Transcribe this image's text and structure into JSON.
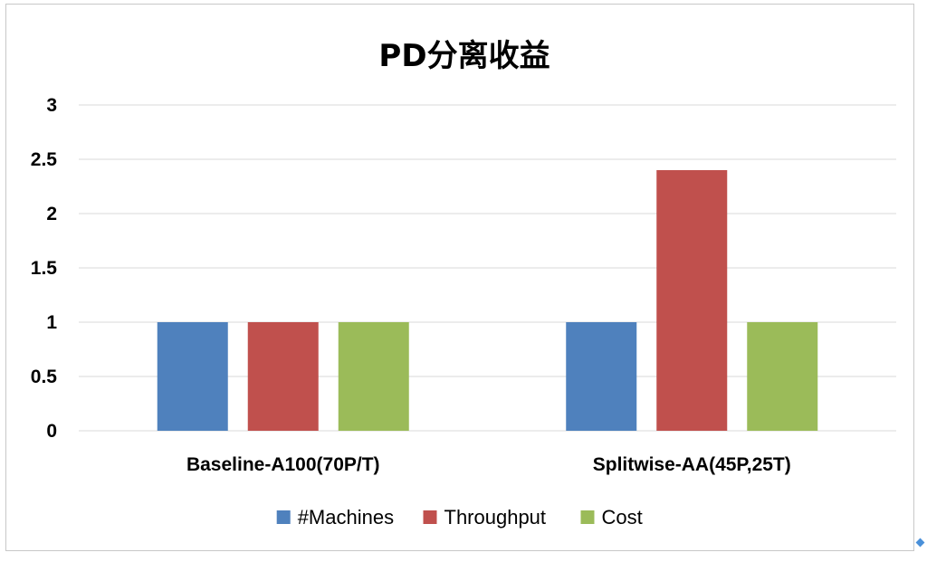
{
  "chart_data": {
    "type": "bar",
    "title": "PD分离收益",
    "categories": [
      "Baseline-A100(70P/T)",
      "Splitwise-AA(45P,25T)"
    ],
    "series": [
      {
        "name": "#Machines",
        "color": "#4f81bd",
        "values": [
          1,
          1
        ]
      },
      {
        "name": "Throughput",
        "color": "#c0504d",
        "values": [
          1,
          2.4
        ]
      },
      {
        "name": "Cost",
        "color": "#9bbb59",
        "values": [
          1,
          1
        ]
      }
    ],
    "ylim": [
      0,
      3
    ],
    "yticks": [
      "0",
      "0.5",
      "1",
      "1.5",
      "2",
      "2.5",
      "3"
    ],
    "grid": true,
    "legend_position": "bottom"
  }
}
